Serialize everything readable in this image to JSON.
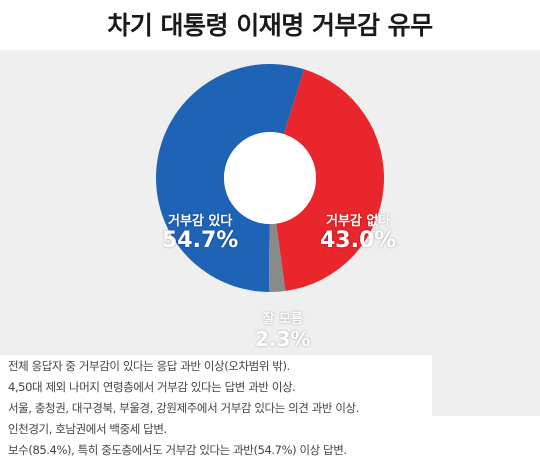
{
  "title": "차기 대통령 이재명 거부감 유무",
  "chart_data": {
    "type": "pie",
    "categories": [
      "거부감 있다",
      "거부감 없다",
      "잘 모름"
    ],
    "values": [
      54.7,
      43.0,
      2.3
    ],
    "labels": [
      "54.7%",
      "43.0%",
      "2.3%"
    ],
    "colors": [
      "#1f63b6",
      "#e8262b",
      "#8a8a8a"
    ],
    "donut": true
  },
  "notes": [
    "전체 응답자 중 거부감이 있다는 응답 과반 이상(오차범위 밖).",
    "4,50대 제외 나머지 연령층에서 거부감 있다는 답변 과반 이상.",
    "서울, 충청권, 대구경북, 부울경, 강원제주에서 거부감 있다는 의견 과반 이상.",
    "인천경기, 호남권에서 백중세 답변.",
    "보수(85.4%), 특히 중도층에서도 거부감 있다는 과반(54.7%) 이상 답변."
  ]
}
